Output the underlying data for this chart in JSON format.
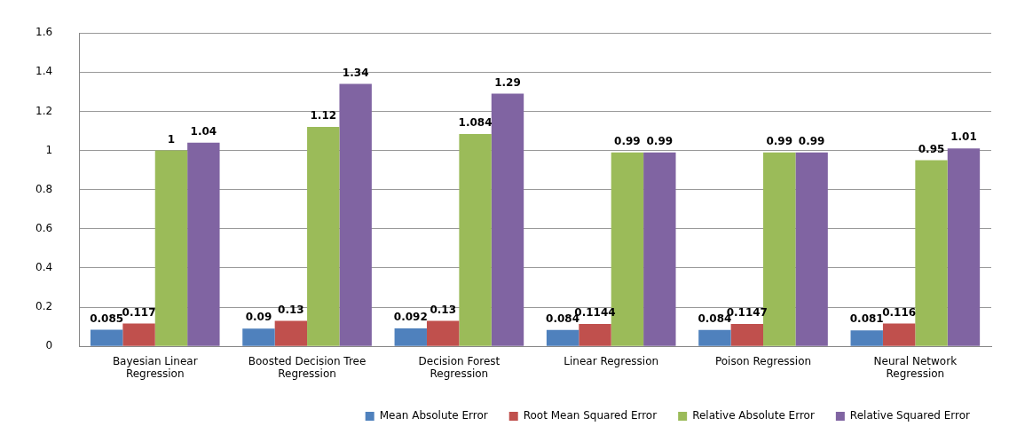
{
  "chart_data": {
    "type": "bar",
    "categories": [
      "Bayesian Linear Regression",
      "Boosted Decision Tree Regression",
      "Decision Forest Regression",
      "Linear Regression",
      "Poison Regression",
      "Neural Network Regression"
    ],
    "series": [
      {
        "name": "Mean Absolute Error",
        "color": "#4f81bd",
        "values": [
          0.085,
          0.09,
          0.092,
          0.084,
          0.084,
          0.081
        ]
      },
      {
        "name": "Root Mean Squared Error",
        "color": "#c0504d",
        "values": [
          0.117,
          0.13,
          0.13,
          0.1144,
          0.1147,
          0.116
        ]
      },
      {
        "name": "Relative Absolute Error",
        "color": "#9bbb59",
        "values": [
          1,
          1.12,
          1.084,
          0.99,
          0.99,
          0.95
        ]
      },
      {
        "name": "Relative Squared Error",
        "color": "#8064a2",
        "values": [
          1.04,
          1.34,
          1.29,
          0.99,
          0.99,
          1.01
        ]
      }
    ],
    "ylim": [
      0,
      1.6
    ],
    "yticks": [
      0,
      0.2,
      0.4,
      0.6,
      0.8,
      1,
      1.2,
      1.4,
      1.6
    ],
    "grid": "y",
    "legend": "bottom",
    "data_labels": true
  }
}
